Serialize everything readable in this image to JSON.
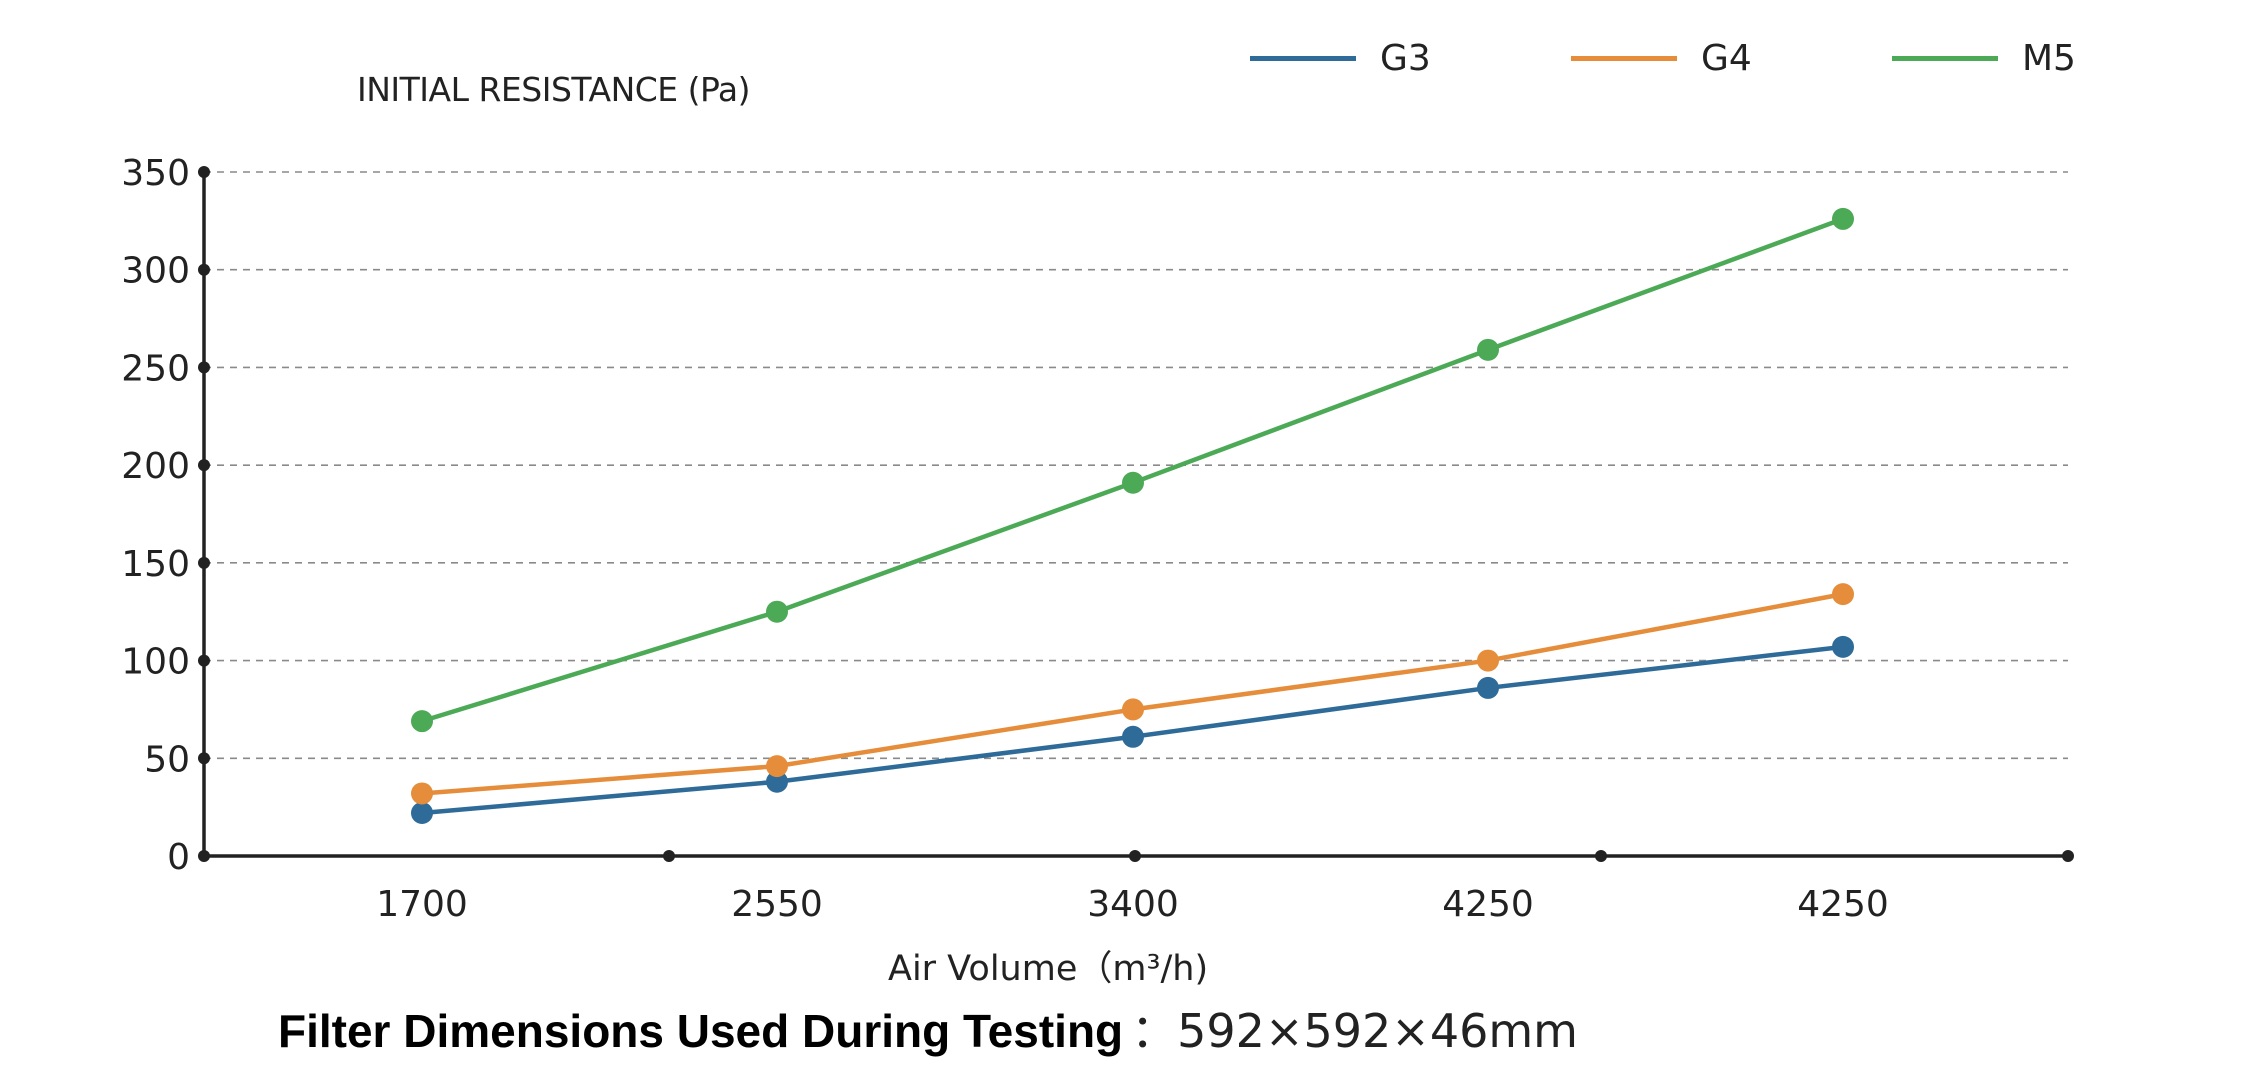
{
  "chart_data": {
    "type": "line",
    "title": "",
    "ylabel": "INITIAL RESISTANCE (Pa)",
    "xlabel": "Air Volume（m³/h)",
    "categories": [
      "1700",
      "2550",
      "3400",
      "4250",
      "4250"
    ],
    "ylim": [
      0,
      350
    ],
    "yticks": [
      0,
      50,
      100,
      150,
      200,
      250,
      300,
      350
    ],
    "grid": "horizontal-dashed",
    "legend_position": "top-right",
    "series": [
      {
        "name": "G3",
        "color": "#2e6b99",
        "values": [
          22,
          38,
          61,
          86,
          107
        ]
      },
      {
        "name": "G4",
        "color": "#e58d3a",
        "values": [
          32,
          46,
          75,
          100,
          134
        ]
      },
      {
        "name": "M5",
        "color": "#4caa57",
        "values": [
          69,
          125,
          191,
          259,
          326
        ]
      }
    ]
  },
  "footer": {
    "label": "Filter Dimensions Used During Testing",
    "value": "：592×592×46mm"
  }
}
